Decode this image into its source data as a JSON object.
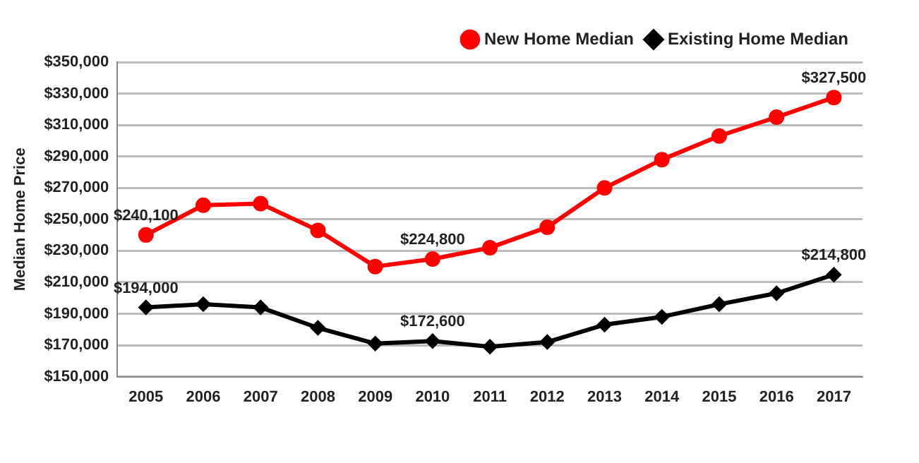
{
  "chart_data": {
    "type": "line",
    "ylabel": "Median Home Price",
    "categories": [
      "2005",
      "2006",
      "2007",
      "2008",
      "2009",
      "2010",
      "2011",
      "2012",
      "2013",
      "2014",
      "2015",
      "2016",
      "2017"
    ],
    "series": [
      {
        "name": "New Home Median",
        "color": "#ff0000",
        "marker": "circle",
        "values": [
          240100,
          259000,
          260000,
          243000,
          220000,
          224800,
          232000,
          245000,
          270000,
          288000,
          303000,
          315000,
          327500
        ],
        "value_labels": [
          "$240,100",
          null,
          null,
          null,
          null,
          "$224,800",
          null,
          null,
          null,
          null,
          null,
          null,
          "$327,500"
        ]
      },
      {
        "name": "Existing Home Median",
        "color": "#000000",
        "marker": "diamond",
        "values": [
          194000,
          196000,
          194000,
          181000,
          171000,
          172600,
          169000,
          172000,
          183000,
          188000,
          196000,
          203000,
          214800
        ],
        "value_labels": [
          "$194,000",
          null,
          null,
          null,
          null,
          "$172,600",
          null,
          null,
          null,
          null,
          null,
          null,
          "$214,800"
        ]
      }
    ],
    "ylim": [
      150000,
      350000
    ],
    "yticks": [
      {
        "value": 150000,
        "label": "$150,000"
      },
      {
        "value": 170000,
        "label": "$170,000"
      },
      {
        "value": 190000,
        "label": "$190,000"
      },
      {
        "value": 210000,
        "label": "$210,000"
      },
      {
        "value": 230000,
        "label": "$230,000"
      },
      {
        "value": 250000,
        "label": "$250,000"
      },
      {
        "value": 270000,
        "label": "$270,000"
      },
      {
        "value": 290000,
        "label": "$290,000"
      },
      {
        "value": 310000,
        "label": "$310,000"
      },
      {
        "value": 330000,
        "label": "$330,000"
      },
      {
        "value": 350000,
        "label": "$350,000"
      }
    ],
    "grid": "y",
    "legend": "top right",
    "line_style": "solid"
  }
}
